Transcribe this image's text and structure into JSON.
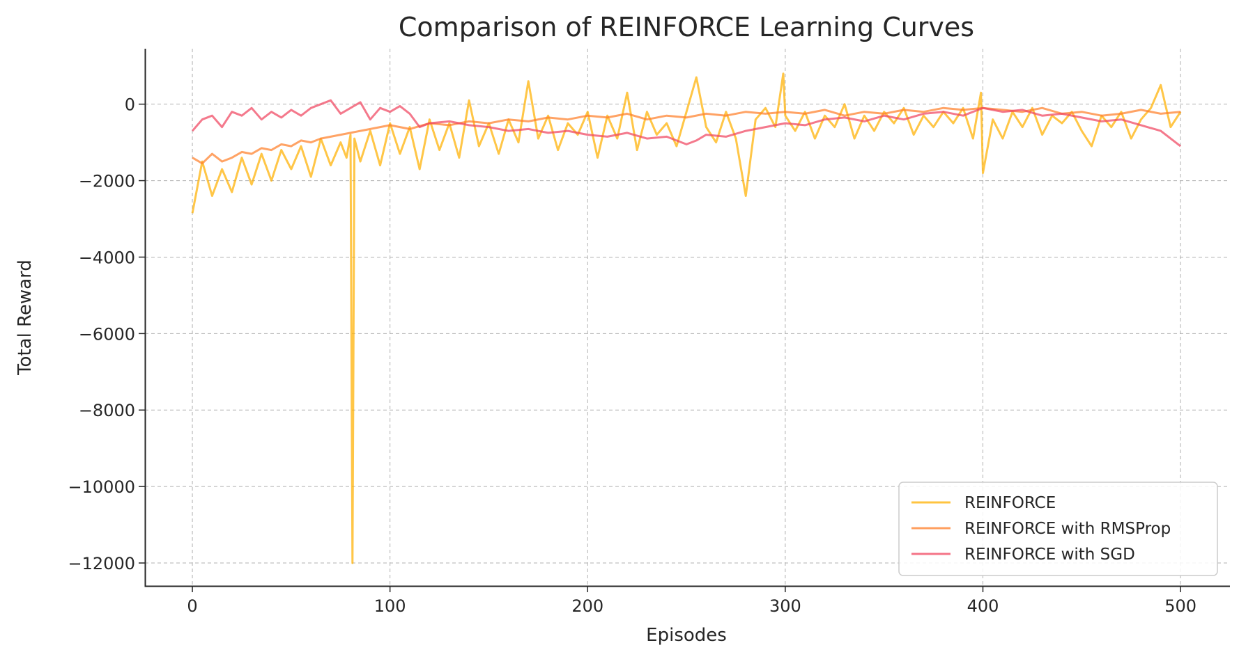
{
  "chart_data": {
    "type": "line",
    "title": "Comparison of REINFORCE Learning Curves",
    "xlabel": "Episodes",
    "ylabel": "Total Reward",
    "xlim": [
      -24,
      525
    ],
    "ylim": [
      -12600,
      1450
    ],
    "xticks": [
      0,
      100,
      200,
      300,
      400,
      500
    ],
    "yticks": [
      0,
      -2000,
      -4000,
      -6000,
      -8000,
      -10000,
      -12000
    ],
    "xtick_labels": [
      "0",
      "100",
      "200",
      "300",
      "400",
      "500"
    ],
    "ytick_labels": [
      "0",
      "−2000",
      "−4000",
      "−6000",
      "−8000",
      "−10000",
      "−12000"
    ],
    "grid": true,
    "legend_position": "lower-right",
    "series": [
      {
        "name": "REINFORCE",
        "color": "#ffb000",
        "x": [
          0,
          5,
          10,
          15,
          20,
          25,
          30,
          35,
          40,
          45,
          50,
          55,
          60,
          65,
          70,
          75,
          78,
          80,
          81,
          82,
          85,
          90,
          95,
          100,
          105,
          110,
          115,
          120,
          125,
          130,
          135,
          140,
          145,
          150,
          155,
          160,
          165,
          170,
          175,
          180,
          185,
          190,
          195,
          200,
          205,
          210,
          215,
          220,
          225,
          230,
          235,
          240,
          245,
          250,
          255,
          260,
          265,
          270,
          275,
          280,
          285,
          290,
          295,
          299,
          300,
          305,
          310,
          315,
          320,
          325,
          330,
          335,
          340,
          345,
          350,
          355,
          360,
          365,
          370,
          375,
          380,
          385,
          390,
          395,
          399,
          400,
          405,
          410,
          415,
          420,
          425,
          430,
          435,
          440,
          445,
          450,
          455,
          460,
          465,
          470,
          475,
          480,
          485,
          490,
          495,
          500
        ],
        "values": [
          -2850,
          -1500,
          -2400,
          -1700,
          -2300,
          -1400,
          -2100,
          -1300,
          -2000,
          -1200,
          -1700,
          -1100,
          -1900,
          -900,
          -1600,
          -1000,
          -1400,
          -800,
          -12000,
          -900,
          -1500,
          -700,
          -1600,
          -500,
          -1300,
          -600,
          -1700,
          -400,
          -1200,
          -500,
          -1400,
          100,
          -1100,
          -500,
          -1300,
          -400,
          -1000,
          600,
          -900,
          -300,
          -1200,
          -500,
          -800,
          -200,
          -1400,
          -300,
          -900,
          300,
          -1200,
          -200,
          -800,
          -500,
          -1100,
          -200,
          700,
          -600,
          -1000,
          -200,
          -900,
          -2400,
          -400,
          -100,
          -600,
          800,
          -300,
          -700,
          -200,
          -900,
          -300,
          -600,
          0,
          -900,
          -300,
          -700,
          -200,
          -500,
          -100,
          -800,
          -300,
          -600,
          -200,
          -500,
          -100,
          -900,
          300,
          -1800,
          -400,
          -900,
          -200,
          -600,
          -100,
          -800,
          -300,
          -500,
          -200,
          -700,
          -1100,
          -300,
          -600,
          -200,
          -900,
          -400,
          -100,
          500,
          -600,
          -200
        ]
      },
      {
        "name": "REINFORCE with RMSProp",
        "color": "#ff7f2a",
        "x": [
          0,
          5,
          10,
          15,
          20,
          25,
          30,
          35,
          40,
          45,
          50,
          55,
          60,
          65,
          70,
          75,
          80,
          85,
          90,
          95,
          100,
          110,
          120,
          130,
          140,
          150,
          160,
          170,
          180,
          190,
          200,
          210,
          220,
          230,
          240,
          250,
          260,
          270,
          280,
          290,
          300,
          310,
          320,
          330,
          340,
          350,
          360,
          370,
          380,
          390,
          400,
          410,
          420,
          430,
          440,
          450,
          460,
          470,
          480,
          490,
          500
        ],
        "values": [
          -1400,
          -1550,
          -1300,
          -1500,
          -1400,
          -1250,
          -1300,
          -1150,
          -1200,
          -1050,
          -1100,
          -950,
          -1000,
          -900,
          -850,
          -800,
          -750,
          -700,
          -650,
          -600,
          -550,
          -650,
          -500,
          -550,
          -450,
          -500,
          -400,
          -450,
          -350,
          -400,
          -300,
          -350,
          -250,
          -400,
          -300,
          -350,
          -250,
          -300,
          -200,
          -250,
          -200,
          -250,
          -150,
          -300,
          -200,
          -250,
          -150,
          -200,
          -100,
          -150,
          -100,
          -150,
          -200,
          -100,
          -250,
          -200,
          -300,
          -250,
          -150,
          -250,
          -200
        ]
      },
      {
        "name": "REINFORCE with SGD",
        "color": "#f0455f",
        "x": [
          0,
          5,
          10,
          15,
          20,
          25,
          30,
          35,
          40,
          45,
          50,
          55,
          60,
          65,
          70,
          75,
          80,
          85,
          90,
          95,
          100,
          105,
          110,
          115,
          120,
          130,
          140,
          150,
          160,
          170,
          180,
          190,
          200,
          210,
          220,
          230,
          240,
          250,
          255,
          260,
          270,
          280,
          290,
          300,
          310,
          320,
          330,
          340,
          350,
          360,
          370,
          380,
          390,
          400,
          410,
          420,
          430,
          440,
          450,
          460,
          470,
          480,
          490,
          500
        ],
        "values": [
          -700,
          -400,
          -300,
          -600,
          -200,
          -300,
          -100,
          -400,
          -200,
          -350,
          -150,
          -300,
          -100,
          0,
          100,
          -250,
          -100,
          50,
          -400,
          -100,
          -200,
          -50,
          -250,
          -600,
          -500,
          -450,
          -550,
          -600,
          -700,
          -650,
          -750,
          -700,
          -800,
          -850,
          -750,
          -900,
          -850,
          -1050,
          -950,
          -800,
          -850,
          -700,
          -600,
          -500,
          -550,
          -400,
          -350,
          -450,
          -300,
          -400,
          -250,
          -200,
          -300,
          -100,
          -200,
          -150,
          -300,
          -250,
          -350,
          -450,
          -400,
          -550,
          -700,
          -1100
        ]
      }
    ]
  }
}
